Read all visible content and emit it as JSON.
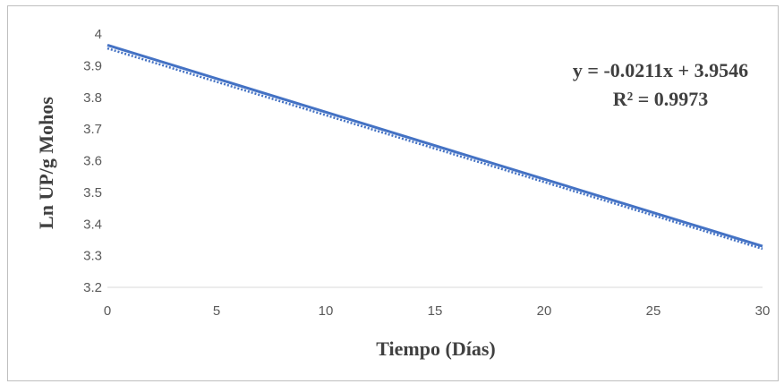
{
  "chart_data": {
    "type": "line",
    "title": "",
    "xlabel": "Tiempo (Días)",
    "ylabel": "Ln UP/g Mohos",
    "xlim": [
      0,
      30
    ],
    "ylim": [
      3.2,
      4.0
    ],
    "xticks": [
      "0",
      "5",
      "10",
      "15",
      "20",
      "25",
      "30"
    ],
    "yticks": [
      "3.2",
      "3.3",
      "3.4",
      "3.5",
      "3.6",
      "3.7",
      "3.8",
      "3.9",
      "4"
    ],
    "grid": false,
    "legend": "none",
    "series": [
      {
        "x": [
          0,
          30
        ],
        "values": [
          3.965,
          3.33
        ],
        "color": "#4472C4",
        "style": "solid"
      }
    ],
    "trendline": {
      "equation": "y = -0.0211x + 3.9546",
      "r_squared": "R² = 0.9973",
      "slope": -0.0211,
      "intercept": 3.9546,
      "color": "#4472C4",
      "style": "dotted"
    }
  }
}
